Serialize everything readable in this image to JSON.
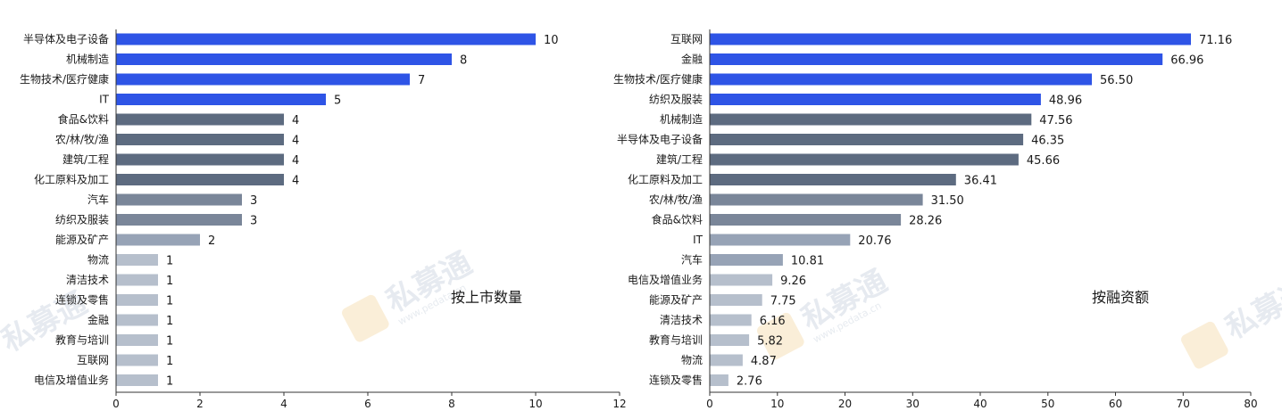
{
  "watermark": {
    "text": "私募通",
    "url": "www.pedata.cn"
  },
  "chart_data": [
    {
      "type": "bar",
      "orientation": "horizontal",
      "annotation": "按上市数量",
      "categories": [
        "半导体及电子设备",
        "机械制造",
        "生物技术/医疗健康",
        "IT",
        "食品&饮料",
        "农/林/牧/渔",
        "建筑/工程",
        "化工原料及加工",
        "汽车",
        "纺织及服装",
        "能源及矿产",
        "物流",
        "清洁技术",
        "连锁及零售",
        "金融",
        "教育与培训",
        "互联网",
        "电信及增值业务"
      ],
      "values": [
        10,
        8,
        7,
        5,
        4,
        4,
        4,
        4,
        3,
        3,
        2,
        1,
        1,
        1,
        1,
        1,
        1,
        1
      ],
      "value_labels": [
        "10",
        "8",
        "7",
        "5",
        "4",
        "4",
        "4",
        "4",
        "3",
        "3",
        "2",
        "1",
        "1",
        "1",
        "1",
        "1",
        "1",
        "1"
      ],
      "bar_colors": [
        "#2e54e6",
        "#2e54e6",
        "#2e54e6",
        "#2e54e6",
        "#5d6b80",
        "#5d6b80",
        "#5d6b80",
        "#5d6b80",
        "#7a8699",
        "#7a8699",
        "#97a3b6",
        "#b6bfcc",
        "#b6bfcc",
        "#b6bfcc",
        "#b6bfcc",
        "#b6bfcc",
        "#b6bfcc",
        "#b6bfcc"
      ],
      "xlim": [
        0,
        12
      ],
      "xticks": [
        "0",
        "2",
        "4",
        "6",
        "8",
        "10",
        "12"
      ],
      "grid": false
    },
    {
      "type": "bar",
      "orientation": "horizontal",
      "annotation": "按融资额",
      "categories": [
        "互联网",
        "金融",
        "生物技术/医疗健康",
        "纺织及服装",
        "机械制造",
        "半导体及电子设备",
        "建筑/工程",
        "化工原料及加工",
        "农/林/牧/渔",
        "食品&饮料",
        "IT",
        "汽车",
        "电信及增值业务",
        "能源及矿产",
        "清洁技术",
        "教育与培训",
        "物流",
        "连锁及零售"
      ],
      "values": [
        71.16,
        66.96,
        56.5,
        48.96,
        47.56,
        46.35,
        45.66,
        36.41,
        31.5,
        28.26,
        20.76,
        10.81,
        9.26,
        7.75,
        6.16,
        5.82,
        4.87,
        2.76
      ],
      "value_labels": [
        "71.16",
        "66.96",
        "56.50",
        "48.96",
        "47.56",
        "46.35",
        "45.66",
        "36.41",
        "31.50",
        "28.26",
        "20.76",
        "10.81",
        "9.26",
        "7.75",
        "6.16",
        "5.82",
        "4.87",
        "2.76"
      ],
      "bar_colors": [
        "#2e54e6",
        "#2e54e6",
        "#2e54e6",
        "#2e54e6",
        "#5d6b80",
        "#5d6b80",
        "#5d6b80",
        "#5d6b80",
        "#7a8699",
        "#7a8699",
        "#97a3b6",
        "#97a3b6",
        "#b6bfcc",
        "#b6bfcc",
        "#b6bfcc",
        "#b6bfcc",
        "#b6bfcc",
        "#b6bfcc"
      ],
      "xlim": [
        0,
        80
      ],
      "xticks": [
        "0",
        "10",
        "20",
        "30",
        "40",
        "50",
        "60",
        "70",
        "80"
      ],
      "grid": false
    }
  ]
}
